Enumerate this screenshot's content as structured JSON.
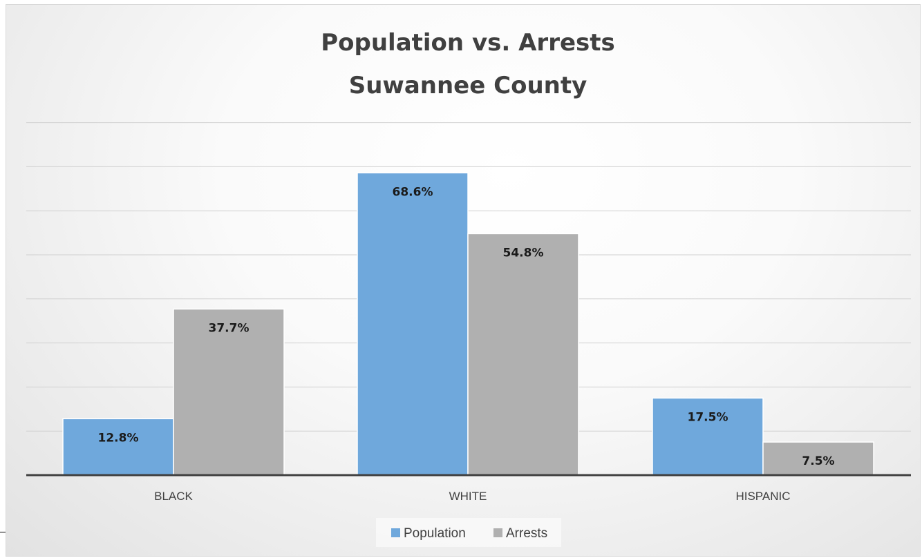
{
  "chart_data": {
    "type": "bar",
    "title": [
      "Population vs. Arrests",
      "Suwannee County"
    ],
    "categories": [
      "BLACK",
      "WHITE",
      "HISPANIC"
    ],
    "series": [
      {
        "name": "Population",
        "values": [
          12.8,
          68.6,
          17.5
        ],
        "labels": [
          "12.8%",
          "68.6%",
          "17.5%"
        ],
        "color": "#6fa8dc"
      },
      {
        "name": "Arrests",
        "values": [
          37.7,
          54.8,
          7.5
        ],
        "labels": [
          "37.7%",
          "54.8%",
          "7.5%"
        ],
        "color": "#b0b0b0"
      }
    ],
    "ylim": [
      0,
      80
    ],
    "grid": true,
    "y_tick_labels_shown": false,
    "legend_position": "bottom"
  }
}
